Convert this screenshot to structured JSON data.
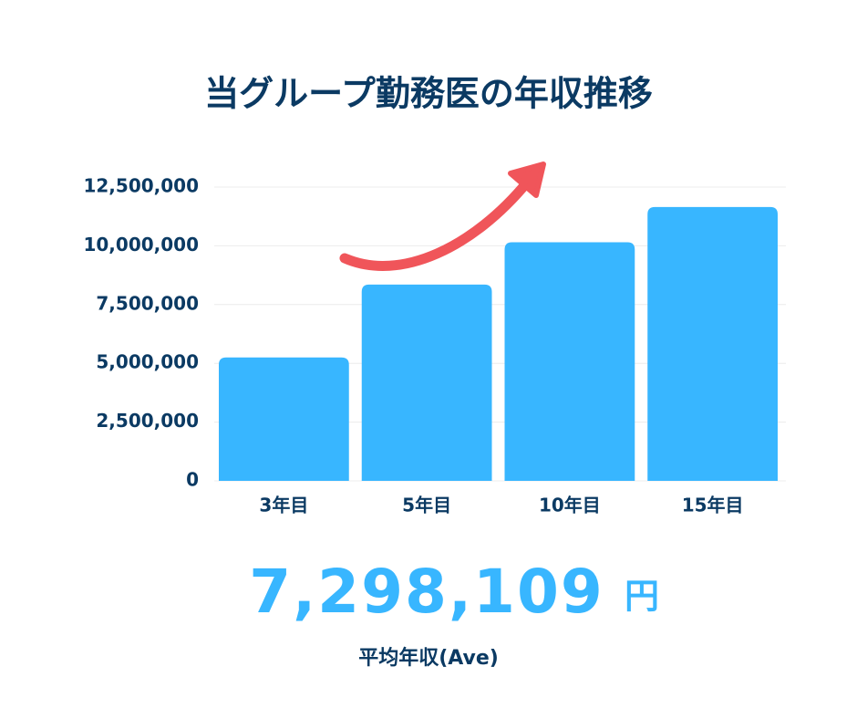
{
  "chart_data": {
    "type": "bar",
    "title": "当グループ勤務医の年収推移",
    "categories": [
      "3年目",
      "5年目",
      "10年目",
      "15年目"
    ],
    "values": [
      5250000,
      8350000,
      10150000,
      11650000
    ],
    "color": "#38b6ff",
    "ylim": [
      0,
      12500000
    ],
    "yticks": [
      0,
      {
        "value": 2500000,
        "label": "2,500,000"
      },
      {
        "value": 5000000,
        "label": "5,000,000"
      },
      {
        "value": 7500000,
        "label": "7,500,000"
      },
      {
        "value": 10000000,
        "label": "10,000,000"
      },
      {
        "value": 12500000,
        "label": "12,500,000"
      }
    ],
    "grid": true,
    "average_value": "7,298,109",
    "average_unit": "円",
    "average_label": "平均年収(Ave)"
  }
}
